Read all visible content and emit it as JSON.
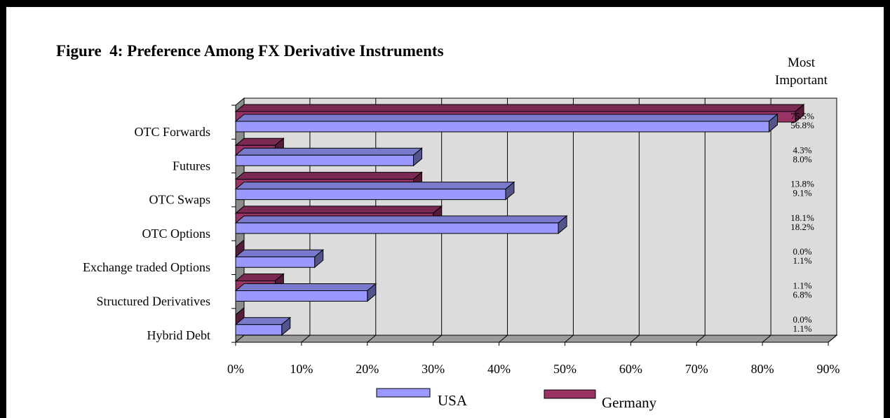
{
  "chart_data": {
    "type": "bar",
    "orientation": "horizontal",
    "style": "3d",
    "title": "Figure  4: Preference Among FX Derivative Instruments",
    "side_header": [
      "Most",
      "Important"
    ],
    "categories": [
      "OTC Forwards",
      "Futures",
      "OTC Swaps",
      "OTC Options",
      "Exchange traded Options",
      "Structured Derivatives",
      "Hybrid Debt"
    ],
    "series": [
      {
        "name": "Germany",
        "color": "#993366",
        "values": [
          85,
          6,
          27,
          30,
          0,
          6,
          0
        ],
        "most_important_labels": [
          "75.5%",
          "4.3%",
          "13.8%",
          "18.1%",
          "0.0%",
          "1.1%",
          "0.0%"
        ]
      },
      {
        "name": "USA",
        "color": "#9999ff",
        "values": [
          81,
          27,
          41,
          49,
          12,
          20,
          7
        ],
        "most_important_labels": [
          "56.8%",
          "8.0%",
          "9.1%",
          "18.2%",
          "1.1%",
          "6.8%",
          "1.1%"
        ]
      }
    ],
    "xlim": [
      0,
      90
    ],
    "xticks": [
      "0%",
      "10%",
      "20%",
      "30%",
      "40%",
      "50%",
      "60%",
      "70%",
      "80%",
      "90%"
    ],
    "grid": true,
    "legend": "bottom"
  }
}
